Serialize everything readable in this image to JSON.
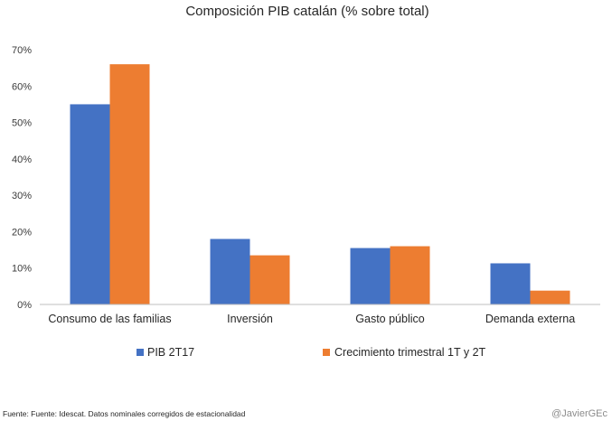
{
  "chart_data": {
    "type": "bar",
    "title": "Composición PIB catalán (% sobre total)",
    "categories": [
      "Consumo de las familias",
      "Inversión",
      "Gasto público",
      "Demanda externa"
    ],
    "series": [
      {
        "name": "PIB 2T17",
        "color": "#4472C4",
        "values": [
          55,
          18,
          15.5,
          11.3
        ]
      },
      {
        "name": "Crecimiento trimestral 1T y 2T",
        "color": "#ED7D31",
        "values": [
          66,
          13.5,
          16,
          3.8
        ]
      }
    ],
    "y_ticks": [
      "0%",
      "10%",
      "20%",
      "30%",
      "40%",
      "50%",
      "60%",
      "70%"
    ],
    "ylim": [
      0,
      70
    ],
    "xlabel": "",
    "ylabel": "",
    "grid": false,
    "legend": "bottom"
  },
  "footer": {
    "source": "Fuente: Fuente: Idescat. Datos nominales corregidos de estacionalidad",
    "credit": "@JavierGEc"
  }
}
